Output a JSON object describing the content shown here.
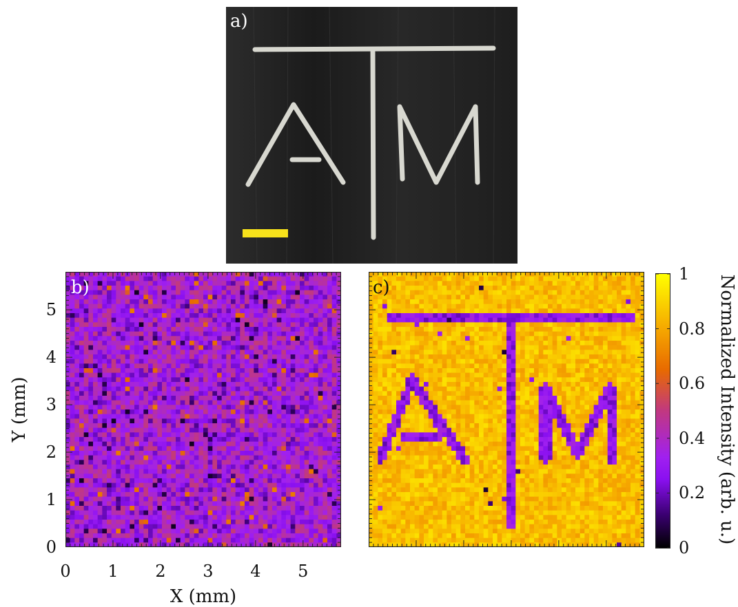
{
  "figure": {
    "panels": [
      {
        "id": "a",
        "label": "a)",
        "kind": "photo",
        "photo_text": [
          "A",
          "T",
          "M"
        ],
        "scale_bar_color": "#f7e21b"
      },
      {
        "id": "b",
        "label": "b)",
        "kind": "heatmap"
      },
      {
        "id": "c",
        "label": "c)",
        "kind": "heatmap"
      }
    ],
    "colorbar": {
      "title": "Normalized Intensity (arb. u.)",
      "ticks": [
        "0",
        "0.2",
        "0.4",
        "0.6",
        "0.8",
        "1"
      ]
    }
  },
  "chart_data": [
    {
      "type": "heatmap",
      "panel": "b)",
      "title": "",
      "xlabel": "X (mm)",
      "ylabel": "Y (mm)",
      "xlim": [
        0,
        5.8
      ],
      "ylim": [
        0,
        5.8
      ],
      "xticks": [
        "0",
        "1",
        "2",
        "3",
        "4",
        "5"
      ],
      "yticks": [
        "0",
        "1",
        "2",
        "3",
        "4",
        "5"
      ],
      "grid_cells": [
        60,
        60
      ],
      "value_range": [
        0,
        1
      ],
      "mean_value": 0.35,
      "pattern": "uniform noise, no visible letters"
    },
    {
      "type": "heatmap",
      "panel": "c)",
      "title": "",
      "xlabel": "",
      "ylabel": "",
      "xlim": [
        0,
        5.8
      ],
      "ylim": [
        0,
        5.8
      ],
      "xticks": [],
      "yticks": [],
      "grid_cells": [
        60,
        60
      ],
      "value_range": [
        0,
        1
      ],
      "background_value": 0.85,
      "pattern_value": 0.28,
      "pattern": "letters A T M at low intensity on high-intensity background"
    }
  ],
  "colors": {
    "colormap": [
      "#000000",
      "#3a0070",
      "#8a10f0",
      "#c13880",
      "#e86a00",
      "#f6a800",
      "#ffff00"
    ]
  }
}
